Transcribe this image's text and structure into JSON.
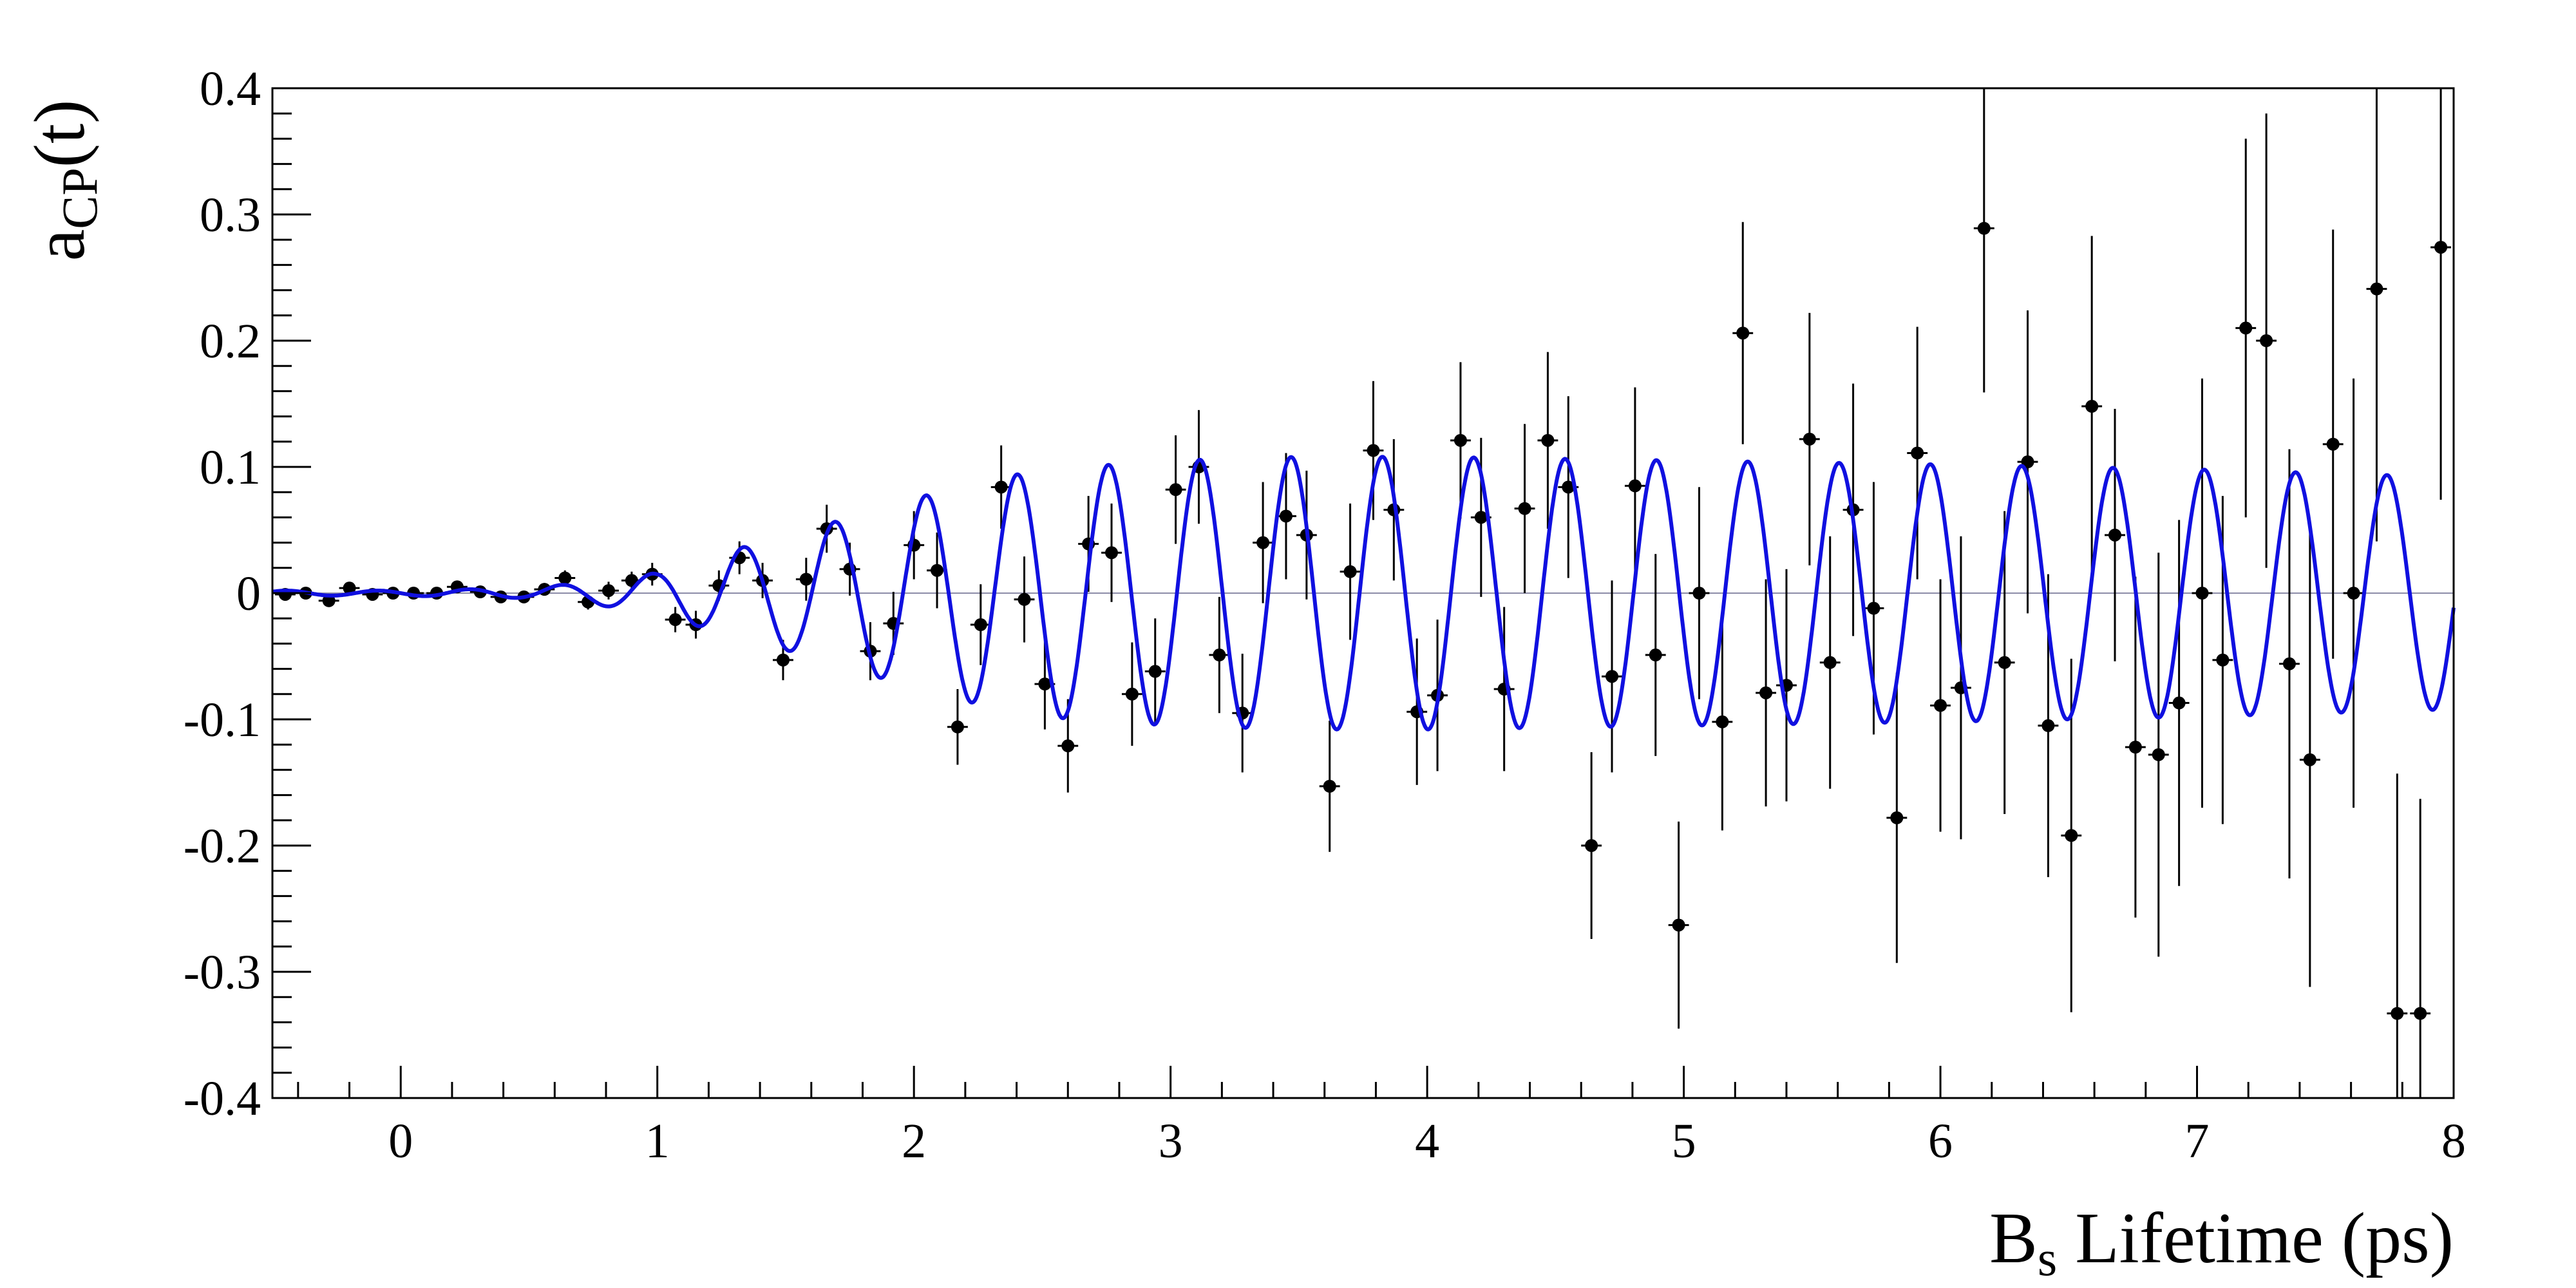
{
  "chart_data": {
    "type": "scatter",
    "title": "",
    "xlabel": {
      "main": "B",
      "sub": "s",
      "rest": " Lifetime (ps)"
    },
    "ylabel": {
      "main": "a",
      "sub": "CP",
      "rest": "(t)"
    },
    "xlim": [
      -0.5,
      8
    ],
    "ylim": [
      -0.4,
      0.4
    ],
    "xticks": [
      "0",
      "1",
      "2",
      "3",
      "4",
      "5",
      "6",
      "7",
      "8"
    ],
    "yticks": [
      "0.4",
      "0.3",
      "0.2",
      "0.1",
      "0",
      "-0.1",
      "-0.2",
      "-0.3",
      "-0.4"
    ],
    "grid": false,
    "colors": {
      "fit": "#1010e0",
      "points": "#000000",
      "zero_line": "#8c8ca8"
    },
    "series": [
      {
        "type": "errorbar",
        "x_halfwidth": 0.04,
        "points": [
          {
            "x": -0.45,
            "y": -0.001,
            "err": 0.004
          },
          {
            "x": -0.37,
            "y": 0.0,
            "err": 0.004
          },
          {
            "x": -0.28,
            "y": -0.006,
            "err": 0.005
          },
          {
            "x": -0.2,
            "y": 0.004,
            "err": 0.004
          },
          {
            "x": -0.11,
            "y": -0.001,
            "err": 0.004
          },
          {
            "x": -0.03,
            "y": 0.0,
            "err": 0.004
          },
          {
            "x": 0.05,
            "y": 0.0,
            "err": 0.004
          },
          {
            "x": 0.14,
            "y": 0.0,
            "err": 0.004
          },
          {
            "x": 0.22,
            "y": 0.005,
            "err": 0.004
          },
          {
            "x": 0.31,
            "y": 0.001,
            "err": 0.004
          },
          {
            "x": 0.39,
            "y": -0.003,
            "err": 0.004
          },
          {
            "x": 0.48,
            "y": -0.003,
            "err": 0.005
          },
          {
            "x": 0.56,
            "y": 0.003,
            "err": 0.005
          },
          {
            "x": 0.64,
            "y": 0.012,
            "err": 0.006
          },
          {
            "x": 0.73,
            "y": -0.007,
            "err": 0.006
          },
          {
            "x": 0.81,
            "y": 0.002,
            "err": 0.007
          },
          {
            "x": 0.9,
            "y": 0.01,
            "err": 0.007
          },
          {
            "x": 0.98,
            "y": 0.015,
            "err": 0.009
          },
          {
            "x": 1.07,
            "y": -0.021,
            "err": 0.01
          },
          {
            "x": 1.15,
            "y": -0.025,
            "err": 0.011
          },
          {
            "x": 1.24,
            "y": 0.006,
            "err": 0.012
          },
          {
            "x": 1.32,
            "y": 0.028,
            "err": 0.013
          },
          {
            "x": 1.41,
            "y": 0.01,
            "err": 0.014
          },
          {
            "x": 1.49,
            "y": -0.053,
            "err": 0.016
          },
          {
            "x": 1.58,
            "y": 0.011,
            "err": 0.017
          },
          {
            "x": 1.66,
            "y": 0.051,
            "err": 0.019
          },
          {
            "x": 1.75,
            "y": 0.019,
            "err": 0.021
          },
          {
            "x": 1.83,
            "y": -0.046,
            "err": 0.023
          },
          {
            "x": 1.92,
            "y": -0.024,
            "err": 0.025
          },
          {
            "x": 2.0,
            "y": 0.038,
            "err": 0.027
          },
          {
            "x": 2.09,
            "y": 0.018,
            "err": 0.03
          },
          {
            "x": 2.17,
            "y": -0.106,
            "err": 0.03
          },
          {
            "x": 2.26,
            "y": -0.025,
            "err": 0.032
          },
          {
            "x": 2.34,
            "y": 0.084,
            "err": 0.033
          },
          {
            "x": 2.43,
            "y": -0.005,
            "err": 0.034
          },
          {
            "x": 2.51,
            "y": -0.072,
            "err": 0.036
          },
          {
            "x": 2.6,
            "y": -0.121,
            "err": 0.037
          },
          {
            "x": 2.68,
            "y": 0.039,
            "err": 0.038
          },
          {
            "x": 2.77,
            "y": 0.032,
            "err": 0.039
          },
          {
            "x": 2.85,
            "y": -0.08,
            "err": 0.041
          },
          {
            "x": 2.94,
            "y": -0.062,
            "err": 0.042
          },
          {
            "x": 3.02,
            "y": 0.082,
            "err": 0.043
          },
          {
            "x": 3.11,
            "y": 0.1,
            "err": 0.045
          },
          {
            "x": 3.19,
            "y": -0.049,
            "err": 0.046
          },
          {
            "x": 3.28,
            "y": -0.095,
            "err": 0.047
          },
          {
            "x": 3.36,
            "y": 0.04,
            "err": 0.048
          },
          {
            "x": 3.45,
            "y": 0.061,
            "err": 0.05
          },
          {
            "x": 3.53,
            "y": 0.046,
            "err": 0.051
          },
          {
            "x": 3.62,
            "y": -0.153,
            "err": 0.052
          },
          {
            "x": 3.7,
            "y": 0.017,
            "err": 0.054
          },
          {
            "x": 3.79,
            "y": 0.113,
            "err": 0.055
          },
          {
            "x": 3.87,
            "y": 0.066,
            "err": 0.056
          },
          {
            "x": 3.96,
            "y": -0.094,
            "err": 0.058
          },
          {
            "x": 4.04,
            "y": -0.081,
            "err": 0.06
          },
          {
            "x": 4.13,
            "y": 0.121,
            "err": 0.062
          },
          {
            "x": 4.21,
            "y": 0.06,
            "err": 0.063
          },
          {
            "x": 4.3,
            "y": -0.076,
            "err": 0.065
          },
          {
            "x": 4.38,
            "y": 0.067,
            "err": 0.067
          },
          {
            "x": 4.47,
            "y": 0.121,
            "err": 0.07
          },
          {
            "x": 4.55,
            "y": 0.084,
            "err": 0.072
          },
          {
            "x": 4.64,
            "y": -0.2,
            "err": 0.074
          },
          {
            "x": 4.72,
            "y": -0.066,
            "err": 0.076
          },
          {
            "x": 4.81,
            "y": 0.085,
            "err": 0.078
          },
          {
            "x": 4.89,
            "y": -0.049,
            "err": 0.08
          },
          {
            "x": 4.98,
            "y": -0.263,
            "err": 0.082
          },
          {
            "x": 5.06,
            "y": 0.0,
            "err": 0.084
          },
          {
            "x": 5.15,
            "y": -0.102,
            "err": 0.086
          },
          {
            "x": 5.23,
            "y": 0.206,
            "err": 0.088
          },
          {
            "x": 5.32,
            "y": -0.079,
            "err": 0.09
          },
          {
            "x": 5.4,
            "y": -0.073,
            "err": 0.092
          },
          {
            "x": 5.49,
            "y": 0.122,
            "err": 0.1
          },
          {
            "x": 5.57,
            "y": -0.055,
            "err": 0.1
          },
          {
            "x": 5.66,
            "y": 0.066,
            "err": 0.1
          },
          {
            "x": 5.74,
            "y": -0.012,
            "err": 0.1
          },
          {
            "x": 5.83,
            "y": -0.178,
            "err": 0.115
          },
          {
            "x": 5.91,
            "y": 0.111,
            "err": 0.1
          },
          {
            "x": 6.0,
            "y": -0.089,
            "err": 0.1
          },
          {
            "x": 6.08,
            "y": -0.075,
            "err": 0.12
          },
          {
            "x": 6.17,
            "y": 0.289,
            "err": 0.13
          },
          {
            "x": 6.25,
            "y": -0.055,
            "err": 0.12
          },
          {
            "x": 6.34,
            "y": 0.104,
            "err": 0.12
          },
          {
            "x": 6.42,
            "y": -0.105,
            "err": 0.12
          },
          {
            "x": 6.51,
            "y": -0.192,
            "err": 0.14
          },
          {
            "x": 6.59,
            "y": 0.148,
            "err": 0.135
          },
          {
            "x": 6.68,
            "y": 0.046,
            "err": 0.1
          },
          {
            "x": 6.76,
            "y": -0.122,
            "err": 0.135
          },
          {
            "x": 6.85,
            "y": -0.128,
            "err": 0.16
          },
          {
            "x": 6.93,
            "y": -0.087,
            "err": 0.145
          },
          {
            "x": 7.02,
            "y": 0.0,
            "err": 0.17
          },
          {
            "x": 7.1,
            "y": -0.053,
            "err": 0.13
          },
          {
            "x": 7.19,
            "y": 0.21,
            "err": 0.15
          },
          {
            "x": 7.27,
            "y": 0.2,
            "err": 0.18
          },
          {
            "x": 7.36,
            "y": -0.056,
            "err": 0.17
          },
          {
            "x": 7.44,
            "y": -0.132,
            "err": 0.18
          },
          {
            "x": 7.53,
            "y": 0.118,
            "err": 0.17
          },
          {
            "x": 7.61,
            "y": 0.0,
            "err": 0.17
          },
          {
            "x": 7.7,
            "y": 0.241,
            "err": 0.2
          },
          {
            "x": 7.78,
            "y": -0.333,
            "err": 0.19
          },
          {
            "x": 7.87,
            "y": -0.333,
            "err": 0.17
          },
          {
            "x": 7.95,
            "y": 0.274,
            "err": 0.2
          }
        ]
      },
      {
        "type": "line",
        "model": "A(t)*cos(2*pi*f*t + phi)",
        "frequency_per_ps": 2.81,
        "phase": 1.571,
        "amplitude_samples": [
          [
            -0.5,
            0.002
          ],
          [
            0.0,
            0.002
          ],
          [
            0.5,
            0.004
          ],
          [
            0.75,
            0.009
          ],
          [
            1.0,
            0.016
          ],
          [
            1.25,
            0.032
          ],
          [
            1.5,
            0.045
          ],
          [
            1.75,
            0.06
          ],
          [
            2.0,
            0.075
          ],
          [
            2.25,
            0.088
          ],
          [
            2.5,
            0.098
          ],
          [
            3.0,
            0.105
          ],
          [
            3.5,
            0.108
          ],
          [
            4.0,
            0.108
          ],
          [
            5.0,
            0.105
          ],
          [
            6.0,
            0.102
          ],
          [
            7.0,
            0.098
          ],
          [
            8.0,
            0.092
          ]
        ]
      }
    ]
  }
}
